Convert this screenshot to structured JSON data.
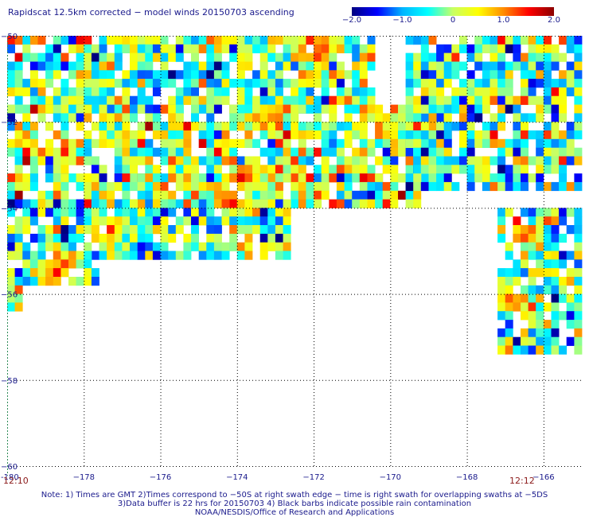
{
  "title": "Rapidscat 12.5km corrected − model winds 20150703 ascending",
  "colorbar": {
    "tick_labels": [
      "−2.0",
      "−1.0",
      "0",
      "1.0",
      "2.0"
    ],
    "tick_values": [
      -2.0,
      -1.0,
      0,
      1.0,
      2.0
    ],
    "range": [
      -2.0,
      2.0
    ],
    "colors": [
      "#000080",
      "#0000ff",
      "#00b4ff",
      "#00ffff",
      "#c8ff64",
      "#ffff00",
      "#ff8c00",
      "#ff0000",
      "#8b0000"
    ]
  },
  "chart_data": {
    "type": "heatmap",
    "title": "Rapidscat 12.5km corrected − model winds 20150703 ascending",
    "xlabel": "",
    "ylabel": "",
    "xlim": [
      -180,
      -165
    ],
    "ylim": [
      -60,
      -50
    ],
    "x_ticks": [
      -180,
      -178,
      -176,
      -174,
      -172,
      -170,
      -168,
      -166
    ],
    "x_tick_labels": [
      "-180",
      "−178",
      "−176",
      "−174",
      "−172",
      "−170",
      "−168",
      "−166"
    ],
    "y_ticks": [
      -50,
      -52,
      -54,
      -56,
      -58,
      -60
    ],
    "y_tick_labels": [
      "−50",
      "−52",
      "−54",
      "−56",
      "−58",
      "−60"
    ],
    "grid": true,
    "value_range": [
      -2.0,
      2.0
    ],
    "cell_size_deg": 0.2,
    "swaths": [
      {
        "lon": [
          -180,
          -170.4
        ],
        "lat": [
          -50.0,
          -51.6
        ],
        "mean": -0.2
      },
      {
        "lon": [
          -180,
          -168.4
        ],
        "lat": [
          -51.6,
          -53.2
        ],
        "mean": 0.0
      },
      {
        "lon": [
          -180,
          -169.2
        ],
        "lat": [
          -53.2,
          -53.8
        ],
        "mean": 0.1
      },
      {
        "lon": [
          -180,
          -172.6
        ],
        "lat": [
          -53.8,
          -55.0
        ],
        "mean": -0.4
      },
      {
        "lon": [
          -180,
          -177.6
        ],
        "lat": [
          -55.0,
          -55.6
        ],
        "mean": -0.3
      },
      {
        "lon": [
          -180,
          -179.6
        ],
        "lat": [
          -55.6,
          -56.2
        ],
        "mean": 0.0
      },
      {
        "lon": [
          -169.6,
          -165.0
        ],
        "lat": [
          -50.0,
          -53.4
        ],
        "mean": -0.3
      },
      {
        "lon": [
          -167.2,
          -165.0
        ],
        "lat": [
          -54.0,
          -57.2
        ],
        "mean": -0.4
      }
    ],
    "hotspots": [
      {
        "lon": -172.0,
        "lat": -50.1,
        "value": 1.8
      },
      {
        "lon": -178.6,
        "lat": -55.3,
        "value": 1.9
      },
      {
        "lon": -177.4,
        "lat": -54.4,
        "value": 1.6
      },
      {
        "lon": -174.2,
        "lat": -53.7,
        "value": 1.5
      },
      {
        "lon": -170.2,
        "lat": -51.6,
        "value": 1.4
      },
      {
        "lon": -166.6,
        "lat": -54.5,
        "value": 1.5
      },
      {
        "lon": -167.0,
        "lat": -56.0,
        "value": 1.6
      }
    ]
  },
  "times": {
    "left": "12:10",
    "right": "12:12"
  },
  "notes": [
    "Note: 1) Times are GMT 2)Times correspond to −50S at right swath edge − time is right swath for overlapping swaths at −5DS",
    "3)Data buffer is 22 hrs for 20150703 4) Black barbs indicate possible rain contamination",
    "NOAA/NESDIS/Office of Research and Applications"
  ]
}
